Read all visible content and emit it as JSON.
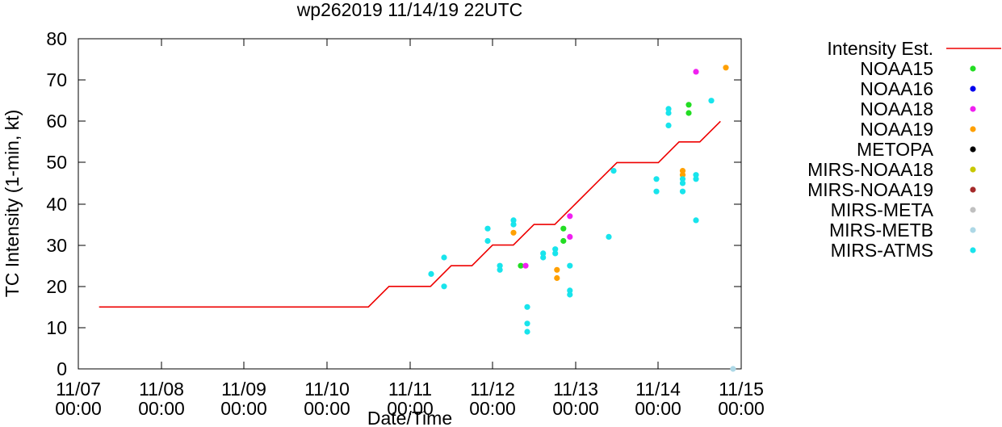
{
  "chart_data": {
    "type": "scatter",
    "title": "wp262019 11/14/19 22UTC",
    "xlabel": "Date/Time",
    "ylabel": "TC Intensity (1-min, kt)",
    "xlim": [
      7,
      15
    ],
    "ylim": [
      0,
      80
    ],
    "grid": false,
    "legend_position": "outside-right",
    "yticks": [
      0,
      10,
      20,
      30,
      40,
      50,
      60,
      70,
      80
    ],
    "xticks": [
      {
        "value": 7,
        "date": "11/07",
        "time": "00:00"
      },
      {
        "value": 8,
        "date": "11/08",
        "time": "00:00"
      },
      {
        "value": 9,
        "date": "11/09",
        "time": "00:00"
      },
      {
        "value": 10,
        "date": "11/10",
        "time": "00:00"
      },
      {
        "value": 11,
        "date": "11/11",
        "time": "00:00"
      },
      {
        "value": 12,
        "date": "11/12",
        "time": "00:00"
      },
      {
        "value": 13,
        "date": "11/13",
        "time": "00:00"
      },
      {
        "value": 14,
        "date": "11/14",
        "time": "00:00"
      },
      {
        "value": 15,
        "date": "11/15",
        "time": "00:00"
      }
    ],
    "line": {
      "name": "Intensity Est.",
      "color": "#ee0000",
      "points": [
        [
          7.25,
          15
        ],
        [
          10.5,
          15
        ],
        [
          10.75,
          20
        ],
        [
          11.25,
          20
        ],
        [
          11.5,
          25
        ],
        [
          11.75,
          25
        ],
        [
          12.0,
          30
        ],
        [
          12.25,
          30
        ],
        [
          12.5,
          35
        ],
        [
          12.75,
          35
        ],
        [
          13.0,
          40
        ],
        [
          13.25,
          45
        ],
        [
          13.5,
          50
        ],
        [
          14.0,
          50
        ],
        [
          14.25,
          55
        ],
        [
          14.5,
          55
        ],
        [
          14.75,
          60
        ]
      ]
    },
    "series": [
      {
        "name": "NOAA15",
        "color": "#22dd22",
        "points": [
          [
            12.34,
            25
          ],
          [
            12.854,
            34
          ],
          [
            12.854,
            31
          ],
          [
            14.367,
            64
          ],
          [
            14.367,
            62
          ]
        ]
      },
      {
        "name": "NOAA16",
        "color": "#0000ee",
        "points": []
      },
      {
        "name": "NOAA18",
        "color": "#f020f0",
        "points": [
          [
            12.398,
            25
          ],
          [
            12.932,
            37
          ],
          [
            12.932,
            32
          ],
          [
            14.454,
            72
          ]
        ]
      },
      {
        "name": "NOAA19",
        "color": "#ffa000",
        "points": [
          [
            12.252,
            33
          ],
          [
            12.776,
            24
          ],
          [
            12.776,
            22
          ],
          [
            14.294,
            48
          ],
          [
            14.294,
            47
          ],
          [
            14.815,
            73
          ]
        ]
      },
      {
        "name": "METOPA",
        "color": "#000000",
        "points": []
      },
      {
        "name": "MIRS-NOAA18",
        "color": "#c8c800",
        "points": []
      },
      {
        "name": "MIRS-NOAA19",
        "color": "#a52a2a",
        "points": []
      },
      {
        "name": "MIRS-META",
        "color": "#c0c0c0",
        "points": []
      },
      {
        "name": "MIRS-METB",
        "color": "#add8e6",
        "points": [
          [
            14.902,
            0
          ]
        ]
      },
      {
        "name": "MIRS-ATMS",
        "color": "#18e4ec",
        "points": [
          [
            11.258,
            23
          ],
          [
            11.414,
            27
          ],
          [
            11.414,
            20
          ],
          [
            11.94,
            34
          ],
          [
            11.94,
            31
          ],
          [
            12.087,
            25
          ],
          [
            12.087,
            24
          ],
          [
            12.252,
            36
          ],
          [
            12.252,
            35
          ],
          [
            12.418,
            15
          ],
          [
            12.418,
            11
          ],
          [
            12.418,
            9
          ],
          [
            12.61,
            28
          ],
          [
            12.61,
            27
          ],
          [
            12.756,
            29
          ],
          [
            12.756,
            28
          ],
          [
            12.932,
            25
          ],
          [
            12.932,
            19
          ],
          [
            12.932,
            18
          ],
          [
            13.402,
            32
          ],
          [
            13.46,
            48
          ],
          [
            13.977,
            46
          ],
          [
            13.977,
            43
          ],
          [
            14.123,
            63
          ],
          [
            14.123,
            62
          ],
          [
            14.123,
            59
          ],
          [
            14.294,
            46
          ],
          [
            14.294,
            45
          ],
          [
            14.294,
            43
          ],
          [
            14.454,
            47
          ],
          [
            14.454,
            46
          ],
          [
            14.454,
            36
          ],
          [
            14.639,
            65
          ]
        ]
      }
    ]
  }
}
